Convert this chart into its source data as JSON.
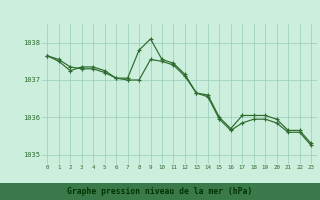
{
  "title": "Graphe pression niveau de la mer (hPa)",
  "xlabel_hours": [
    0,
    1,
    2,
    3,
    4,
    5,
    6,
    7,
    8,
    9,
    10,
    11,
    12,
    13,
    14,
    15,
    16,
    17,
    18,
    19,
    20,
    21,
    22,
    23
  ],
  "line_jagged": [
    1037.65,
    1037.5,
    1037.25,
    1037.35,
    1037.35,
    1037.25,
    1037.05,
    1037.05,
    1037.8,
    1038.1,
    1037.55,
    1037.45,
    1037.15,
    1036.65,
    1036.6,
    1036.0,
    1035.7,
    1036.05,
    1036.05,
    1036.05,
    1035.95,
    1035.65,
    1035.65,
    1035.3
  ],
  "line_straight": [
    1037.65,
    1037.55,
    1037.35,
    1037.3,
    1037.3,
    1037.2,
    1037.05,
    1037.0,
    1037.0,
    1037.55,
    1037.5,
    1037.4,
    1037.1,
    1036.65,
    1036.55,
    1035.95,
    1035.65,
    1035.85,
    1035.95,
    1035.95,
    1035.85,
    1035.6,
    1035.6,
    1035.25
  ],
  "line_color": "#2d6b2d",
  "bg_plot": "#cceedd",
  "bg_label": "#4a9a6a",
  "grid_color": "#99ccbb",
  "text_color_axis": "#2d6b2d",
  "text_color_label": "#003300",
  "ylim": [
    1034.75,
    1038.5
  ],
  "yticks": [
    1035,
    1036,
    1037,
    1038
  ]
}
